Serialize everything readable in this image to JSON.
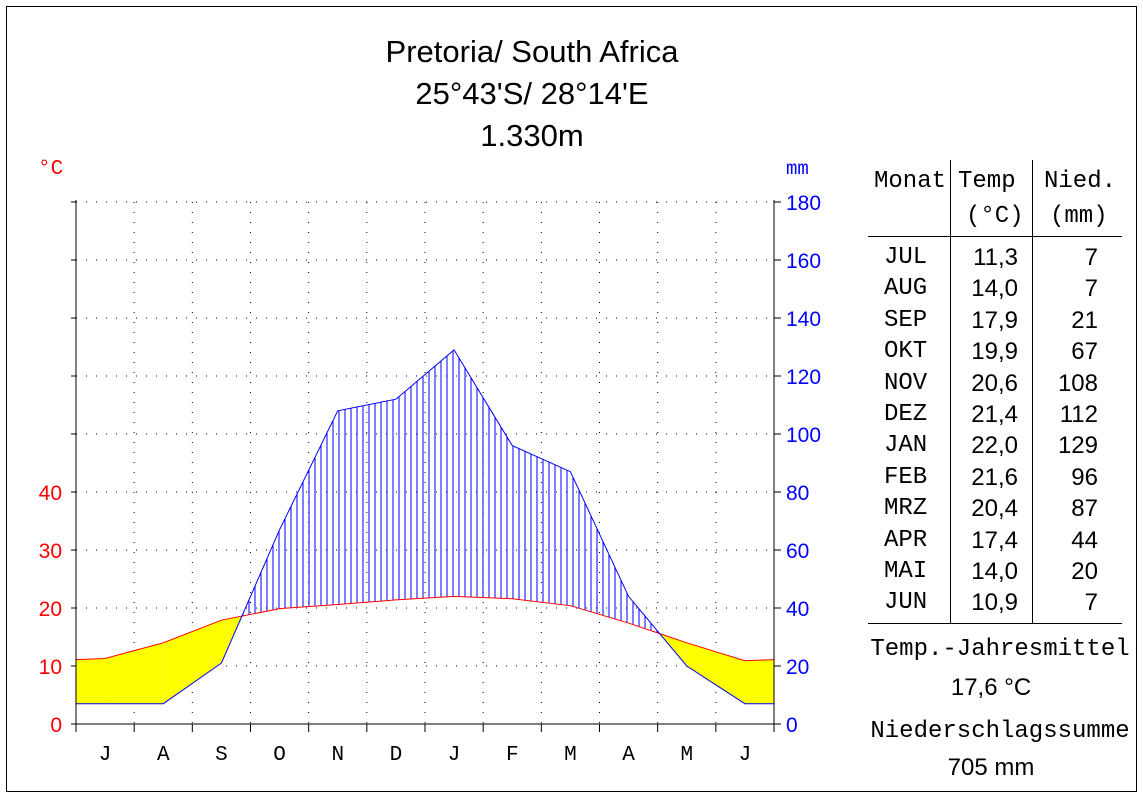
{
  "header": {
    "line1": "Pretoria/ South Africa",
    "line2": "25°43'S/ 28°14'E",
    "line3": "1.330m"
  },
  "chart_data": {
    "type": "line",
    "title": "Pretoria/ South Africa",
    "categories": [
      "J",
      "A",
      "S",
      "O",
      "N",
      "D",
      "J",
      "F",
      "M",
      "A",
      "M",
      "J"
    ],
    "series": [
      {
        "name": "Temp",
        "unit": "°C",
        "color": "#ff0000",
        "values": [
          11.3,
          14.0,
          17.9,
          19.9,
          20.6,
          21.4,
          22.0,
          21.6,
          20.4,
          17.4,
          14.0,
          10.9
        ]
      },
      {
        "name": "Nied.",
        "unit": "mm",
        "color": "#0000ff",
        "values": [
          7,
          7,
          21,
          67,
          108,
          112,
          129,
          96,
          87,
          44,
          20,
          7
        ]
      }
    ],
    "left_axis": {
      "label": "°C",
      "ticks": [
        0,
        10,
        20,
        30,
        40
      ],
      "range": [
        0,
        90
      ],
      "color": "#ff0000"
    },
    "right_axis": {
      "label": "mm",
      "ticks": [
        0,
        20,
        40,
        60,
        80,
        100,
        120,
        140,
        160,
        180
      ],
      "range": [
        0,
        180
      ],
      "color": "#0000ff"
    },
    "humid_fill_color": "#0000ff",
    "arid_fill_color": "#ffff00",
    "grid": "dotted"
  },
  "table": {
    "headers": {
      "month": "Monat",
      "temp": "Temp",
      "temp_unit": "(°C)",
      "precip": "Nied.",
      "precip_unit": "(mm)"
    },
    "rows": [
      {
        "month": "JUL",
        "temp": "11,3",
        "precip": "7"
      },
      {
        "month": "AUG",
        "temp": "14,0",
        "precip": "7"
      },
      {
        "month": "SEP",
        "temp": "17,9",
        "precip": "21"
      },
      {
        "month": "OKT",
        "temp": "19,9",
        "precip": "67"
      },
      {
        "month": "NOV",
        "temp": "20,6",
        "precip": "108"
      },
      {
        "month": "DEZ",
        "temp": "21,4",
        "precip": "112"
      },
      {
        "month": "JAN",
        "temp": "22,0",
        "precip": "129"
      },
      {
        "month": "FEB",
        "temp": "21,6",
        "precip": "96"
      },
      {
        "month": "MRZ",
        "temp": "20,4",
        "precip": "87"
      },
      {
        "month": "APR",
        "temp": "17,4",
        "precip": "44"
      },
      {
        "month": "MAI",
        "temp": "14,0",
        "precip": "20"
      },
      {
        "month": "JUN",
        "temp": "10,9",
        "precip": "7"
      }
    ]
  },
  "summary": {
    "temp_label": "Temp.-Jahresmittel",
    "temp_value": "17,6 °C",
    "precip_label": "Niederschlagssumme",
    "precip_value": "705 mm"
  }
}
